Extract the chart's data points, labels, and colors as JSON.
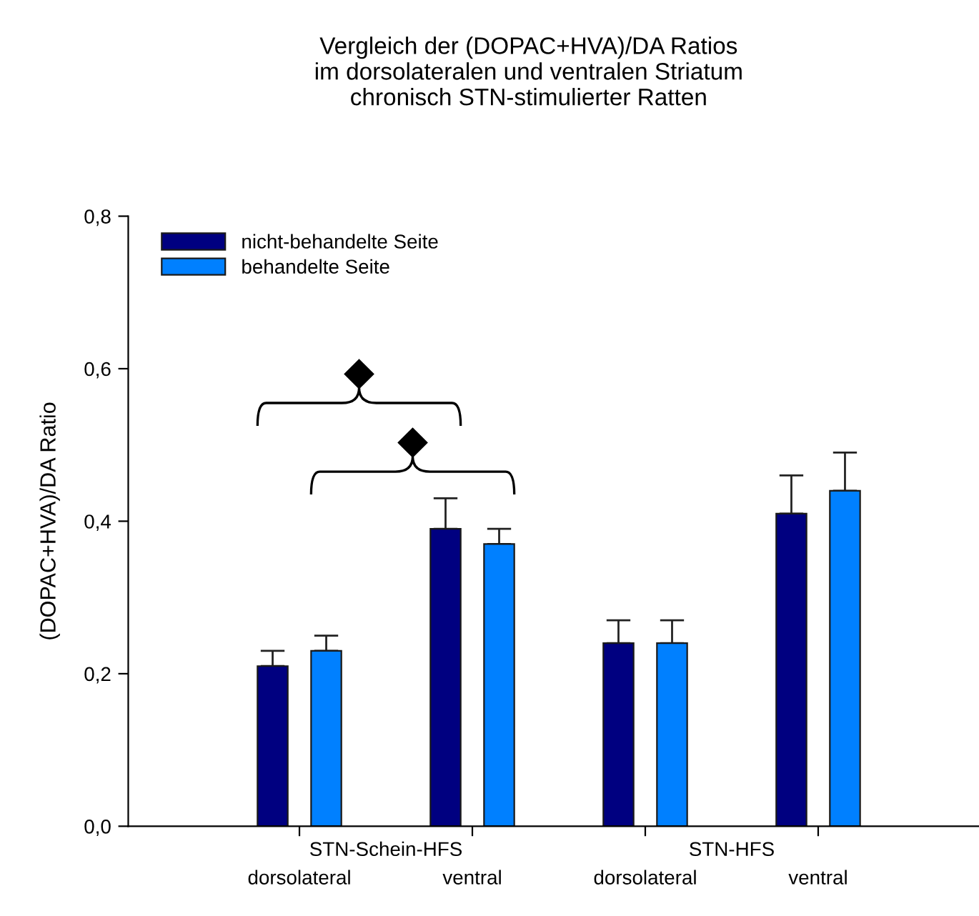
{
  "chart_data": {
    "type": "bar",
    "title": "Vergleich der (DOPAC+HVA)/DA Ratios\nim dorsolateralen und ventralen Striatum\nchronisch STN-stimulierter Ratten",
    "ylabel": "(DOPAC+HVA)/DA Ratio",
    "categories": [
      "dorsolateral",
      "ventral",
      "dorsolateral",
      "ventral"
    ],
    "annotations": [
      "STN-Schein-HFS",
      "STN-HFS"
    ],
    "series": [
      {
        "name": "nicht-behandelte Seite",
        "color": "#000080",
        "values": [
          0.21,
          0.39,
          0.24,
          0.41
        ],
        "errors": [
          0.02,
          0.04,
          0.03,
          0.05
        ]
      },
      {
        "name": "behandelte Seite",
        "color": "#0080ff",
        "values": [
          0.23,
          0.37,
          0.24,
          0.44
        ],
        "errors": [
          0.02,
          0.02,
          0.03,
          0.05
        ]
      }
    ],
    "ylim": [
      0,
      0.8
    ],
    "yticks": [
      {
        "value": 0,
        "label": "0,0"
      },
      {
        "value": 0.2,
        "label": "0,2"
      },
      {
        "value": 0.4,
        "label": "0,4"
      },
      {
        "value": 0.6,
        "label": "0,6"
      },
      {
        "value": 0.8,
        "label": "0,8"
      }
    ],
    "legend": "top left",
    "grid": false
  }
}
